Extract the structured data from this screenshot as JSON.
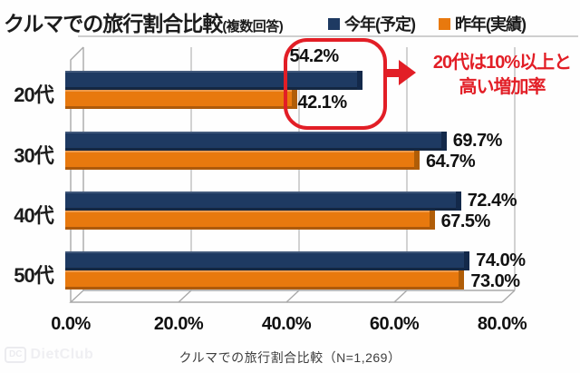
{
  "title": {
    "main": "クルマでの旅行割合比較",
    "sub": "(複数回答)"
  },
  "legend": {
    "items": [
      {
        "label": "今年(予定)",
        "color": "#1e3a62"
      },
      {
        "label": "昨年(実績)",
        "color": "#e8790e"
      }
    ]
  },
  "chart_data": {
    "type": "bar",
    "orientation": "horizontal",
    "title": "クルマでの旅行割合比較(複数回答)",
    "categories": [
      "20代",
      "30代",
      "40代",
      "50代"
    ],
    "series": [
      {
        "name": "今年(予定)",
        "color": "#1e3a62",
        "values": [
          54.2,
          69.7,
          72.4,
          74.0
        ]
      },
      {
        "name": "昨年(実績)",
        "color": "#e8790e",
        "values": [
          42.1,
          64.7,
          67.5,
          73.0
        ]
      }
    ],
    "value_labels": [
      [
        "54.2%",
        "42.1%"
      ],
      [
        "69.7%",
        "64.7%"
      ],
      [
        "72.4%",
        "67.5%"
      ],
      [
        "74.0%",
        "73.0%"
      ]
    ],
    "xlim": [
      0,
      80
    ],
    "x_ticks": [
      0,
      20,
      40,
      60,
      80
    ],
    "x_tick_labels": [
      "0.0%",
      "20.0%",
      "40.0%",
      "60.0%",
      "80.0%"
    ],
    "grid": true,
    "legend_position": "top-right",
    "annotation": {
      "target": "20代",
      "lines": [
        "20代は10%以上と",
        "高い増加率"
      ],
      "color": "#e21e26"
    }
  },
  "colors": {
    "navy": "#1e3a62",
    "orange": "#e8790e",
    "annotation_red": "#e21e26",
    "gridline": "#b5b5b5"
  },
  "caption": "クルマでの旅行割合比較（N=1,269）",
  "watermark": {
    "badge": "DC",
    "text": "DietClub"
  }
}
